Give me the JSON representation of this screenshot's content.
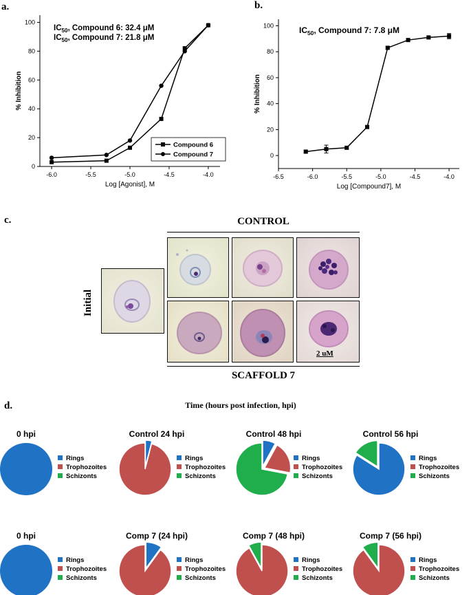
{
  "panels": {
    "a": "a.",
    "b": "b.",
    "c": "c.",
    "d": "d."
  },
  "chart_data": [
    {
      "type": "line",
      "panel": "a",
      "xlabel": "Log [Agonist], M",
      "ylabel": "% Inhibition",
      "xlim": [
        -6.15,
        -3.85
      ],
      "ylim": [
        0,
        105
      ],
      "xticks": [
        -6.0,
        -5.5,
        -5.0,
        -4.5,
        -4.0
      ],
      "xtick_labels": [
        "-6.0",
        "-5.5",
        "-5.0",
        "-4.5",
        "-4.0"
      ],
      "yticks": [
        0,
        20,
        40,
        60,
        80,
        100
      ],
      "ytick_labels": [
        "0",
        "20",
        "40",
        "60",
        "80",
        "100"
      ],
      "annotations": [
        {
          "pre": "IC",
          "sub": "50",
          "post": ", Compound 6: 32.4 μM"
        },
        {
          "pre": "IC",
          "sub": "50",
          "post": ", Compound 7: 21.8 μM"
        }
      ],
      "legend_position": "bottom-right",
      "series": [
        {
          "name": "Compound 6",
          "marker": "square",
          "x": [
            -6.0,
            -5.3,
            -5.0,
            -4.6,
            -4.3,
            -4.0
          ],
          "y": [
            3,
            4,
            13,
            33,
            82,
            98
          ]
        },
        {
          "name": "Compound 7",
          "marker": "circle",
          "x": [
            -6.0,
            -5.3,
            -5.0,
            -4.6,
            -4.3,
            -4.0
          ],
          "y": [
            6,
            8,
            18,
            56,
            80,
            98
          ]
        }
      ]
    },
    {
      "type": "line",
      "panel": "b",
      "xlabel": "Log [Compound7], M",
      "ylabel": "% Inhibition",
      "xlim": [
        -6.5,
        -3.85
      ],
      "ylim": [
        -10,
        105
      ],
      "xticks": [
        -6.5,
        -6.0,
        -5.5,
        -5.0,
        -4.5,
        -4.0
      ],
      "xtick_labels": [
        "-6.5",
        "-6.0",
        "-5.5",
        "-5.0",
        "-4.5",
        "-4.0"
      ],
      "yticks": [
        0,
        20,
        40,
        60,
        80,
        100
      ],
      "ytick_labels": [
        "0",
        "20",
        "40",
        "60",
        "80",
        "100"
      ],
      "annotations": [
        {
          "pre": "IC",
          "sub": "50",
          "post": ", Compound 7: 7.8 μM"
        }
      ],
      "series": [
        {
          "name": "Compound 7",
          "marker": "square",
          "x": [
            -6.1,
            -5.8,
            -5.5,
            -5.2,
            -4.9,
            -4.6,
            -4.3,
            -4.0
          ],
          "y": [
            3,
            5,
            6,
            22,
            83,
            89,
            91,
            92
          ],
          "err": [
            1,
            3,
            1,
            1,
            1,
            1,
            1,
            2
          ]
        }
      ]
    },
    {
      "type": "pie",
      "panel": "d",
      "title": "Time (hours post infection, hpi)",
      "legend": [
        "Rings",
        "Trophozoites",
        "Schizonts"
      ],
      "colors": [
        "#1f72c4",
        "#c0504d",
        "#1fae4b"
      ],
      "charts": [
        {
          "title": "0 hpi",
          "values": [
            100,
            0,
            0
          ]
        },
        {
          "title": "Control  24 hpi",
          "values": [
            4,
            96,
            0
          ]
        },
        {
          "title": "Control  48 hpi",
          "values": [
            8,
            20,
            72
          ]
        },
        {
          "title": "Control  56 hpi",
          "values": [
            84,
            0,
            16
          ]
        },
        {
          "title": "0 hpi",
          "values": [
            100,
            0,
            0
          ]
        },
        {
          "title": "Comp  7 (24 hpi)",
          "values": [
            10,
            90,
            0
          ]
        },
        {
          "title": "Comp  7 (48 hpi)",
          "values": [
            0,
            92,
            8
          ]
        },
        {
          "title": "Comp  7 (56 hpi)",
          "values": [
            0,
            90,
            10
          ]
        }
      ]
    }
  ],
  "micrographs": {
    "control_label": "CONTROL",
    "scaffold_label": "SCAFFOLD  7",
    "initial_label": "Initial",
    "scale_bar": "2 uM"
  }
}
